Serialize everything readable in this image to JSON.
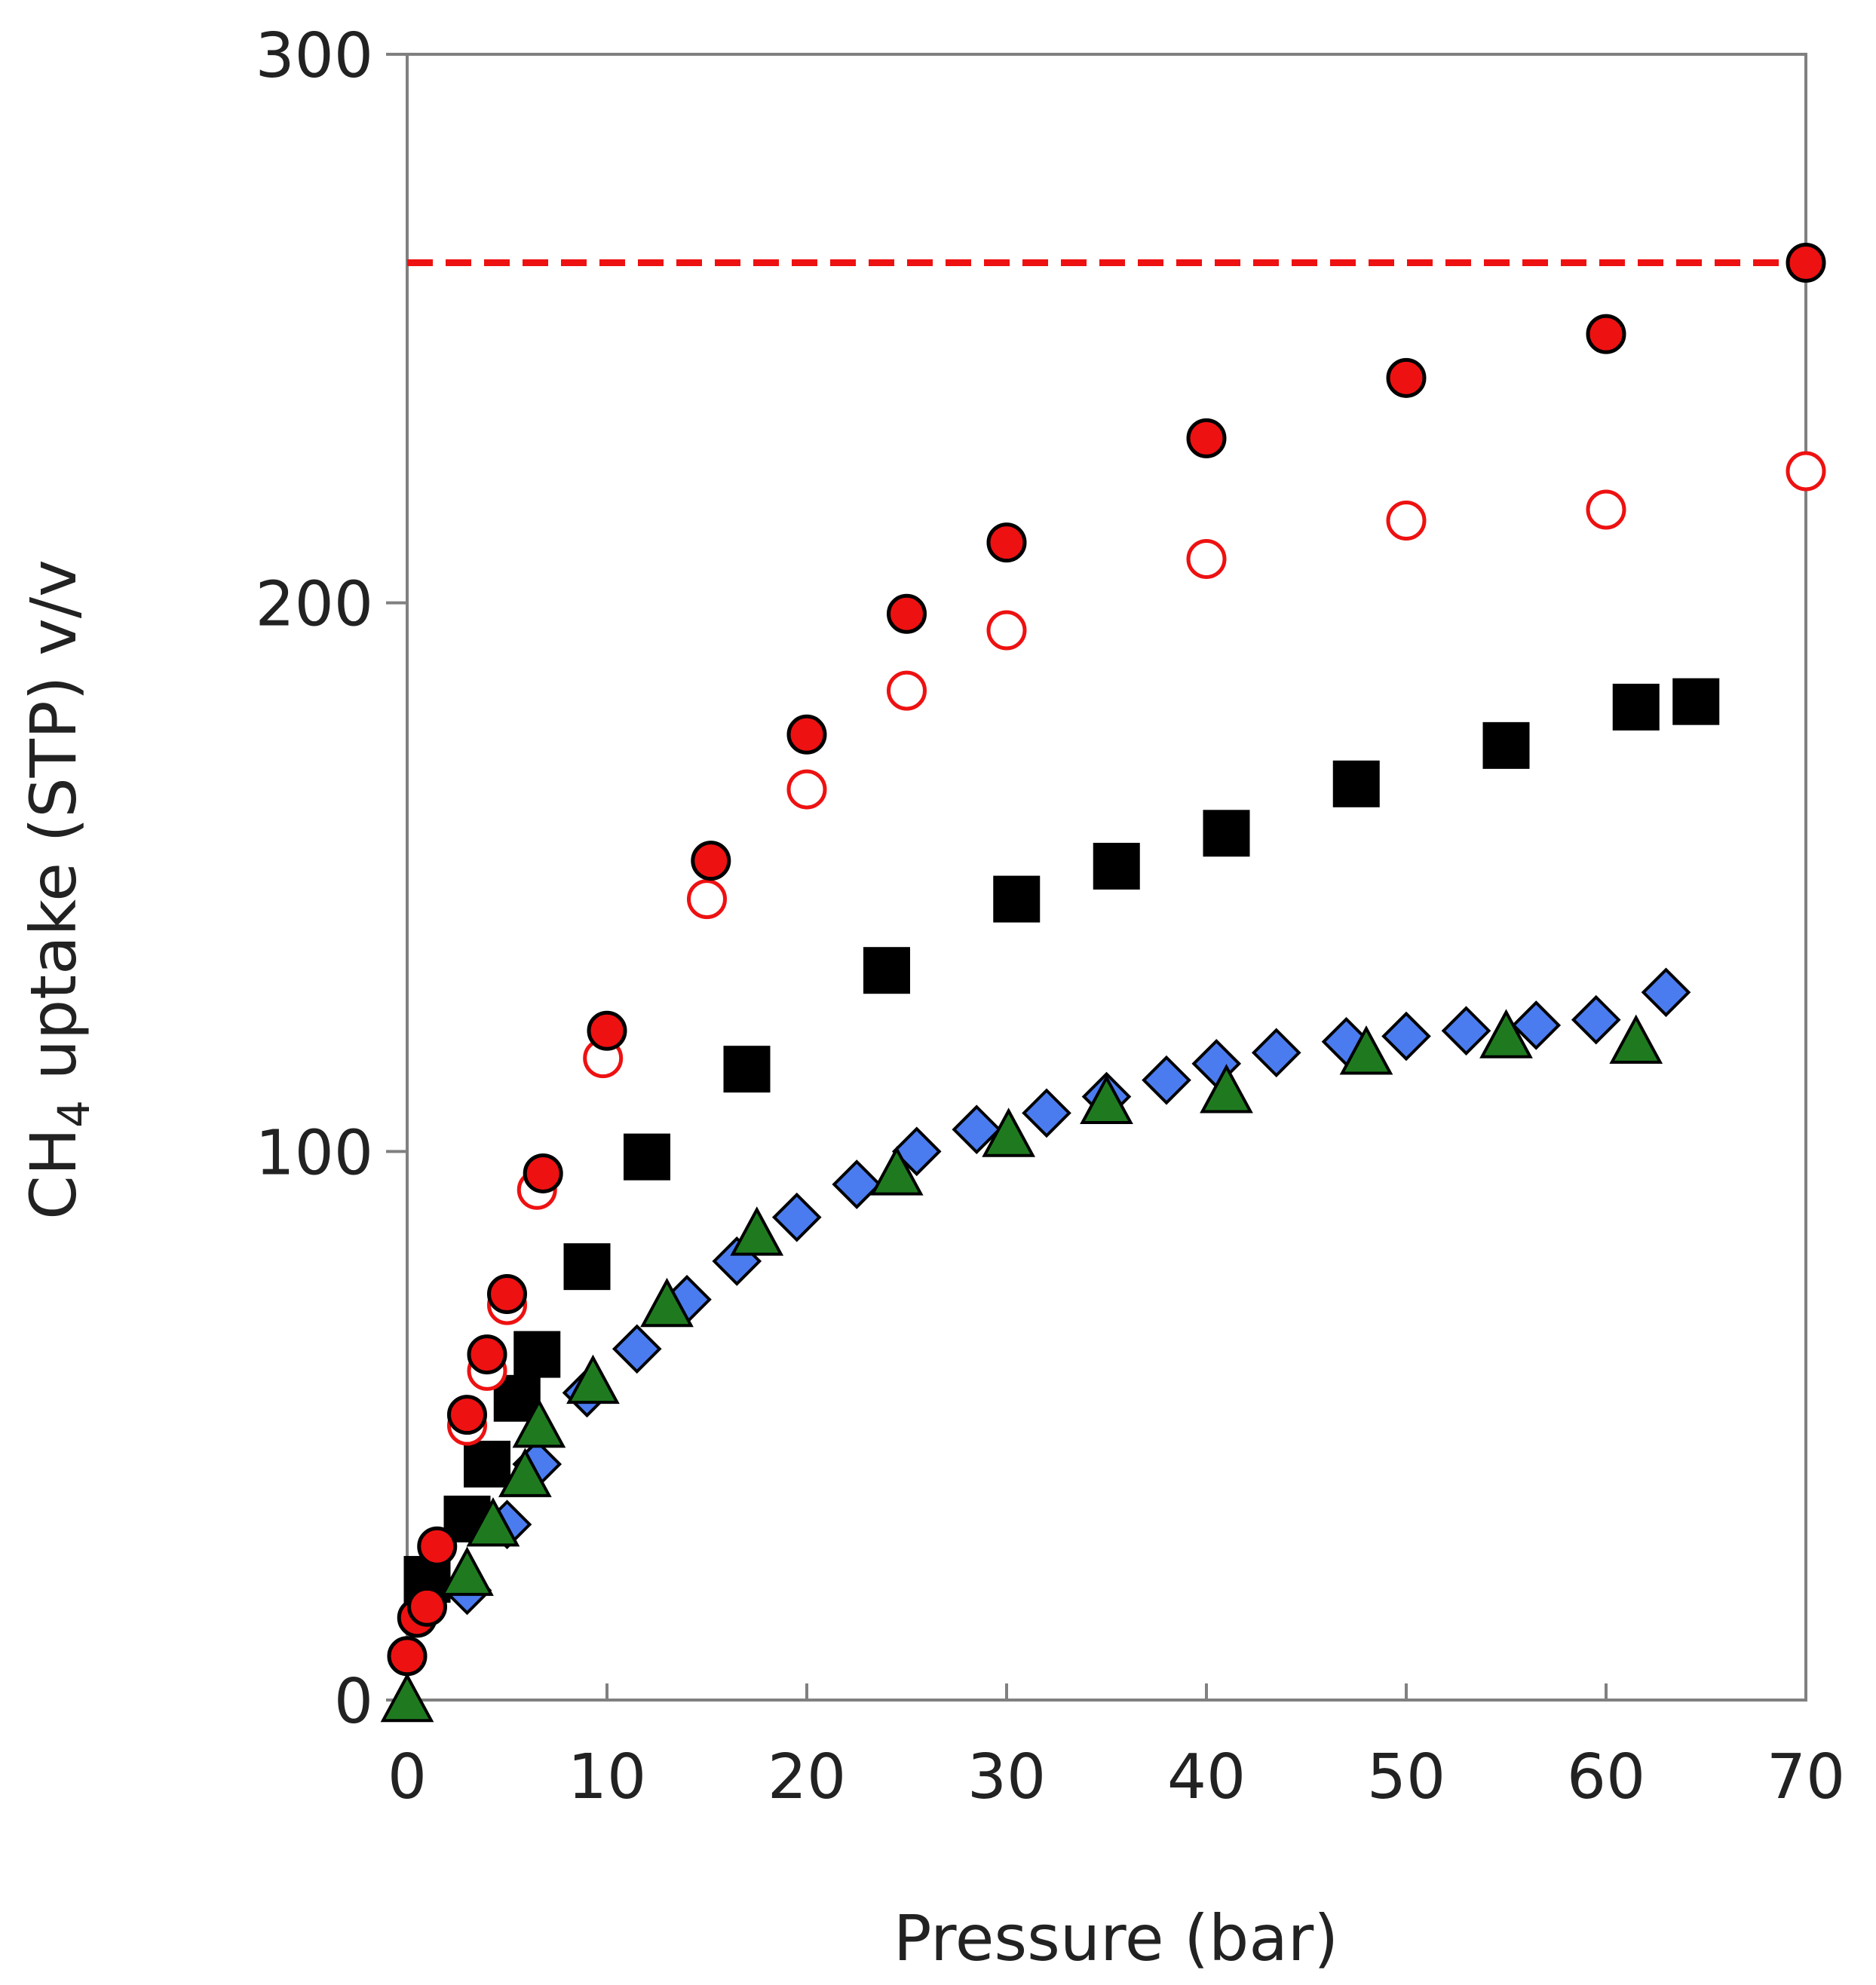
{
  "chart_data": {
    "type": "scatter",
    "title": "",
    "xlabel": "Pressure (bar)",
    "ylabel": {
      "main": "CH",
      "subscript": "4",
      "rest": " uptake (STP) v/v"
    },
    "xlim": [
      0,
      70
    ],
    "ylim": [
      0,
      300
    ],
    "xticks": [
      0,
      10,
      20,
      30,
      40,
      50,
      60,
      70
    ],
    "yticks": [
      0,
      100,
      200,
      300
    ],
    "grid": false,
    "legend": "none",
    "reference_line": {
      "y": 262,
      "color": "#ee1111",
      "style": "dashed"
    },
    "series": [
      {
        "name": "black-squares",
        "marker": "square",
        "fill": "#000000",
        "points": [
          [
            1,
            22
          ],
          [
            3,
            33
          ],
          [
            4,
            43
          ],
          [
            5.5,
            55
          ],
          [
            6.5,
            63
          ],
          [
            9,
            79
          ],
          [
            12,
            99
          ],
          [
            17,
            115
          ],
          [
            24,
            133
          ],
          [
            30.5,
            146
          ],
          [
            35.5,
            152
          ],
          [
            41,
            158
          ],
          [
            47.5,
            167
          ],
          [
            55,
            174
          ],
          [
            61.5,
            181
          ],
          [
            64.5,
            182
          ]
        ]
      },
      {
        "name": "blue-diamonds",
        "marker": "diamond",
        "fill": "#4a7cf0",
        "points": [
          [
            3,
            20
          ],
          [
            5,
            32
          ],
          [
            6.5,
            43
          ],
          [
            9,
            56
          ],
          [
            11.5,
            64
          ],
          [
            14,
            73
          ],
          [
            16.5,
            80
          ],
          [
            19.5,
            88
          ],
          [
            22.5,
            94
          ],
          [
            25.5,
            100
          ],
          [
            28.5,
            104
          ],
          [
            32,
            107
          ],
          [
            35,
            110
          ],
          [
            38,
            113
          ],
          [
            40.5,
            116
          ],
          [
            43.5,
            118
          ],
          [
            47,
            120
          ],
          [
            50,
            121
          ],
          [
            53,
            122
          ],
          [
            56.5,
            123
          ],
          [
            59.5,
            124
          ],
          [
            63,
            129
          ]
        ]
      },
      {
        "name": "green-triangles",
        "marker": "triangle",
        "fill": "#1f7a1f",
        "points": [
          [
            0,
            0
          ],
          [
            3,
            23
          ],
          [
            4.3,
            32
          ],
          [
            5.9,
            41
          ],
          [
            6.6,
            50
          ],
          [
            9.3,
            58
          ],
          [
            13,
            72
          ],
          [
            17.5,
            85
          ],
          [
            24.5,
            96
          ],
          [
            30.1,
            103
          ],
          [
            35,
            109
          ],
          [
            41,
            111
          ],
          [
            48,
            118
          ],
          [
            55,
            121
          ],
          [
            61.5,
            120
          ]
        ]
      },
      {
        "name": "red-open-circles",
        "marker": "open-circle",
        "fill": "none",
        "stroke": "#ee1111",
        "points": [
          [
            3,
            50
          ],
          [
            4,
            60
          ],
          [
            5,
            72
          ],
          [
            6.5,
            93
          ],
          [
            9.8,
            117
          ],
          [
            15,
            146
          ],
          [
            20,
            166
          ],
          [
            25,
            184
          ],
          [
            30,
            195
          ],
          [
            40,
            208
          ],
          [
            50,
            215
          ],
          [
            60,
            217
          ],
          [
            70,
            224
          ]
        ]
      },
      {
        "name": "red-filled-circles",
        "marker": "circle",
        "fill": "#ee1111",
        "stroke": "#000000",
        "points": [
          [
            0,
            8
          ],
          [
            0.5,
            15
          ],
          [
            1,
            17
          ],
          [
            1.5,
            28
          ],
          [
            3,
            52
          ],
          [
            4,
            63
          ],
          [
            5,
            74
          ],
          [
            6.8,
            96
          ],
          [
            10,
            122
          ],
          [
            15.2,
            153
          ],
          [
            20,
            176
          ],
          [
            25,
            198
          ],
          [
            30,
            211
          ],
          [
            40,
            230
          ],
          [
            50,
            241
          ],
          [
            60,
            249
          ],
          [
            70,
            262
          ]
        ]
      }
    ]
  }
}
